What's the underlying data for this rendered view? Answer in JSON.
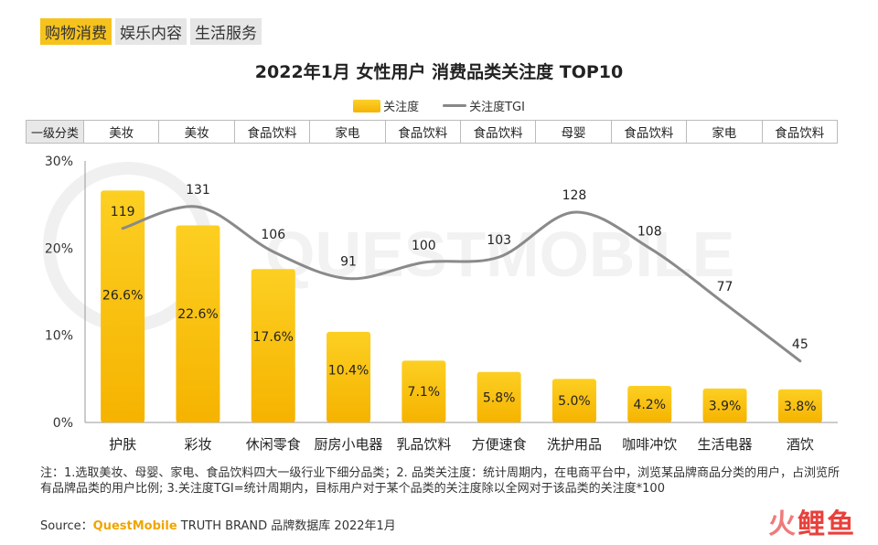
{
  "tabs": [
    {
      "label": "购物消费",
      "active": true
    },
    {
      "label": "娱乐内容",
      "active": false
    },
    {
      "label": "生活服务",
      "active": false
    }
  ],
  "category_header": "一级分类",
  "categories_level1": [
    "美妆",
    "美妆",
    "食品饮料",
    "家电",
    "食品饮料",
    "食品饮料",
    "母婴",
    "食品饮料",
    "家电",
    "食品饮料"
  ],
  "watermark": "QUESTMOBILE",
  "note": "注：1.选取美妆、母婴、家电、食品饮料四大一级行业下细分品类；2. 品类关注度：统计周期内，在电商平台中，浏览某品牌商品分类的用户，占浏览所有品牌品类的用户比例; 3.关注度TGI=统计周期内，目标用户对于某个品类的关注度除以全网对于该品类的关注度*100",
  "source": {
    "prefix": "Source：",
    "brand": "QuestMobile",
    "suffix": " TRUTH BRAND 品牌数据库 2022年1月"
  },
  "logo": {
    "part1": "火",
    "part2": "鲤鱼"
  },
  "colors": {
    "bar": "#f8c10e",
    "line": "#8a8a8a",
    "tab_active": "#f6c21c"
  },
  "chart_data": {
    "type": "bar",
    "title": "2022年1月 女性用户 消费品类关注度 TOP10",
    "categories": [
      "护肤",
      "彩妆",
      "休闲零食",
      "厨房小电器",
      "乳品饮料",
      "方便速食",
      "洗护用品",
      "咖啡冲饮",
      "生活电器",
      "酒饮"
    ],
    "series": [
      {
        "name": "关注度",
        "type": "bar",
        "values": [
          26.6,
          22.6,
          17.6,
          10.4,
          7.1,
          5.8,
          5.0,
          4.2,
          3.9,
          3.8
        ],
        "labels": [
          "26.6%",
          "22.6%",
          "17.6%",
          "10.4%",
          "7.1%",
          "5.8%",
          "5.0%",
          "4.2%",
          "3.9%",
          "3.8%"
        ]
      },
      {
        "name": "关注度TGI",
        "type": "line",
        "values": [
          119,
          131,
          106,
          91,
          100,
          103,
          128,
          108,
          77,
          45
        ]
      }
    ],
    "yticks": [
      "0%",
      "10%",
      "20%",
      "30%"
    ],
    "ylim": [
      0,
      30
    ],
    "grid": false,
    "legend_position": "top-center"
  }
}
